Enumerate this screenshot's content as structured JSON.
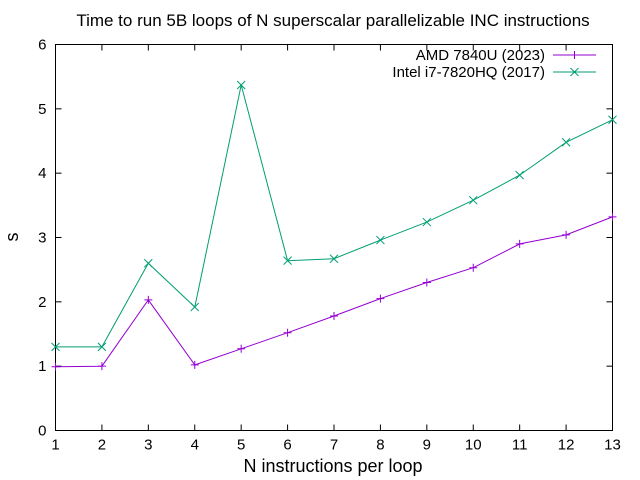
{
  "chart_data": {
    "type": "line",
    "title": "Time to run 5B loops of N superscalar parallelizable INC instructions",
    "xlabel": "N instructions per loop",
    "ylabel": "s",
    "xlim": [
      1,
      13
    ],
    "ylim": [
      0,
      6
    ],
    "x_ticks": [
      "1",
      "2",
      "3",
      "4",
      "5",
      "6",
      "7",
      "8",
      "9",
      "10",
      "11",
      "12",
      "13"
    ],
    "y_ticks": [
      "0",
      "1",
      "2",
      "3",
      "4",
      "5",
      "6"
    ],
    "grid": false,
    "legend_position": "top-right",
    "series": [
      {
        "name": "AMD 7840U (2023)",
        "color": "#9400d3",
        "marker": "plus",
        "x": [
          1,
          2,
          3,
          4,
          5,
          6,
          7,
          8,
          9,
          10,
          11,
          12,
          13
        ],
        "values": [
          0.99,
          1.0,
          2.03,
          1.02,
          1.27,
          1.52,
          1.78,
          2.05,
          2.3,
          2.53,
          2.9,
          3.04,
          3.32
        ]
      },
      {
        "name": "Intel i7-7820HQ (2017)",
        "color": "#009e73",
        "marker": "cross",
        "x": [
          1,
          2,
          3,
          4,
          5,
          6,
          7,
          8,
          9,
          10,
          11,
          12,
          13
        ],
        "values": [
          1.3,
          1.3,
          2.6,
          1.92,
          5.37,
          2.64,
          2.67,
          2.96,
          3.24,
          3.58,
          3.97,
          4.48,
          4.83
        ]
      }
    ]
  }
}
